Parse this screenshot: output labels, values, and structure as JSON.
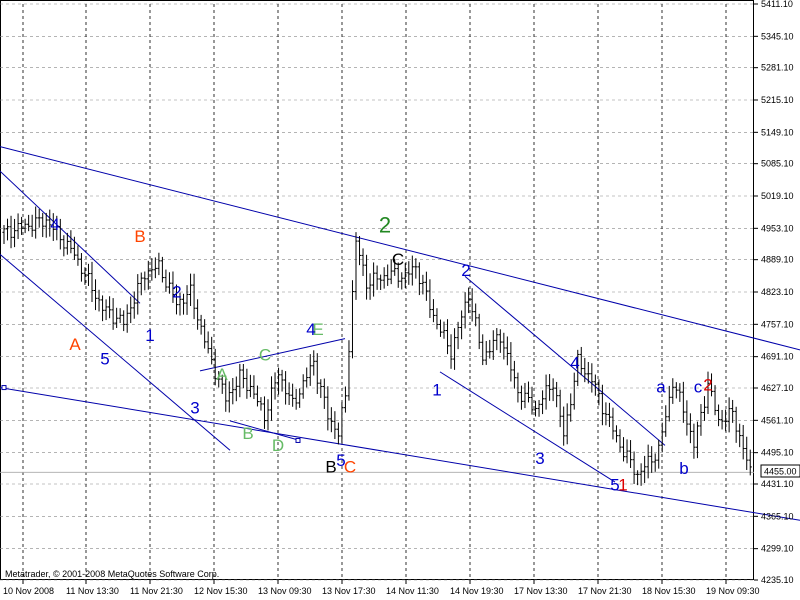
{
  "chart_data": {
    "type": "bar",
    "style": "OHLC price bars",
    "ylim": [
      4235.1,
      5411.1
    ],
    "y_ticks": [
      "5411.10",
      "5345.10",
      "5281.10",
      "5215.10",
      "5149.10",
      "5085.10",
      "5019.10",
      "4953.10",
      "4889.10",
      "4823.10",
      "4757.10",
      "4691.10",
      "4627.10",
      "4561.10",
      "4495.10",
      "4431.10",
      "4365.10",
      "4299.10",
      "4235.10"
    ],
    "x_ticks": [
      "10 Nov 2008",
      "11 Nov 13:30",
      "11 Nov 21:30",
      "12 Nov 15:30",
      "13 Nov 09:30",
      "13 Nov 17:30",
      "14 Nov 11:30",
      "14 Nov 19:30",
      "17 Nov 13:30",
      "17 Nov 21:30",
      "18 Nov 15:30",
      "19 Nov 09:30"
    ],
    "grid": true,
    "current_price": "4455.00",
    "colors": {
      "bars": "#000000",
      "channels": "#0000aa",
      "grid": "#888888",
      "blue_labels": "#0000cc",
      "orange_labels": "#ff4400",
      "green_labels": "#228822",
      "light_green_labels": "#66bb66",
      "red_labels": "#dd0000",
      "black_labels": "#000000"
    },
    "pivots": [
      {
        "i": 0,
        "p": 4945
      },
      {
        "i": 12,
        "p": 4970
      },
      {
        "i": 20,
        "p": 4900
      },
      {
        "i": 28,
        "p": 4790
      },
      {
        "i": 34,
        "p": 4760
      },
      {
        "i": 40,
        "p": 4862
      },
      {
        "i": 44,
        "p": 4875
      },
      {
        "i": 49,
        "p": 4800
      },
      {
        "i": 53,
        "p": 4822
      },
      {
        "i": 58,
        "p": 4700
      },
      {
        "i": 63,
        "p": 4605
      },
      {
        "i": 67,
        "p": 4650
      },
      {
        "i": 70,
        "p": 4628
      },
      {
        "i": 74,
        "p": 4570
      },
      {
        "i": 78,
        "p": 4658
      },
      {
        "i": 82,
        "p": 4592
      },
      {
        "i": 88,
        "p": 4680
      },
      {
        "i": 92,
        "p": 4570
      },
      {
        "i": 95,
        "p": 4535
      },
      {
        "i": 97,
        "p": 4610
      },
      {
        "i": 100,
        "p": 4925
      },
      {
        "i": 103,
        "p": 4842
      },
      {
        "i": 110,
        "p": 4860
      },
      {
        "i": 114,
        "p": 4855
      },
      {
        "i": 117,
        "p": 4875
      },
      {
        "i": 122,
        "p": 4775
      },
      {
        "i": 127,
        "p": 4700
      },
      {
        "i": 132,
        "p": 4820
      },
      {
        "i": 136,
        "p": 4690
      },
      {
        "i": 141,
        "p": 4735
      },
      {
        "i": 146,
        "p": 4620
      },
      {
        "i": 151,
        "p": 4585
      },
      {
        "i": 156,
        "p": 4640
      },
      {
        "i": 159,
        "p": 4530
      },
      {
        "i": 163,
        "p": 4680
      },
      {
        "i": 167,
        "p": 4645
      },
      {
        "i": 170,
        "p": 4590
      },
      {
        "i": 175,
        "p": 4510
      },
      {
        "i": 180,
        "p": 4450
      },
      {
        "i": 186,
        "p": 4500
      },
      {
        "i": 190,
        "p": 4640
      },
      {
        "i": 193,
        "p": 4585
      },
      {
        "i": 196,
        "p": 4510
      },
      {
        "i": 200,
        "p": 4635
      },
      {
        "i": 203,
        "p": 4560
      },
      {
        "i": 207,
        "p": 4575
      },
      {
        "i": 209,
        "p": 4528
      },
      {
        "i": 212,
        "p": 4455
      }
    ],
    "trendlines": [
      {
        "x1": 0,
        "y1": 5120,
        "x2": 800,
        "y2": 4705
      },
      {
        "x1": 0,
        "y1": 5070,
        "x2": 140,
        "y2": 4800
      },
      {
        "x1": 0,
        "y1": 4900,
        "x2": 230,
        "y2": 4500
      },
      {
        "x1": 0,
        "y1": 4628,
        "x2": 800,
        "y2": 4357
      },
      {
        "x1": 200,
        "y1": 4662,
        "x2": 345,
        "y2": 4728
      },
      {
        "x1": 230,
        "y1": 4560,
        "x2": 300,
        "y2": 4520
      },
      {
        "x1": 465,
        "y1": 4855,
        "x2": 665,
        "y2": 4510
      },
      {
        "x1": 440,
        "y1": 4660,
        "x2": 615,
        "y2": 4435
      }
    ],
    "annotations": [
      {
        "text": "4",
        "x": 55,
        "y": 4950,
        "color": "#0000cc"
      },
      {
        "text": "B",
        "x": 140,
        "y": 4925,
        "color": "#ff4400"
      },
      {
        "text": "2",
        "x": 177,
        "y": 4812,
        "color": "#0000cc"
      },
      {
        "text": "1",
        "x": 150,
        "y": 4723,
        "color": "#0000cc"
      },
      {
        "text": "A",
        "x": 75,
        "y": 4705,
        "color": "#ff4400"
      },
      {
        "text": "5",
        "x": 105,
        "y": 4675,
        "color": "#0000cc"
      },
      {
        "text": "3",
        "x": 195,
        "y": 4575,
        "color": "#0000cc"
      },
      {
        "text": "B",
        "x": 248,
        "y": 4523,
        "color": "#66bb66"
      },
      {
        "text": "D",
        "x": 278,
        "y": 4498,
        "color": "#66bb66"
      },
      {
        "text": "A",
        "x": 222,
        "y": 4643,
        "color": "#66bb66"
      },
      {
        "text": "C",
        "x": 265,
        "y": 4683,
        "color": "#66bb66"
      },
      {
        "text": "E",
        "x": 318,
        "y": 4735,
        "color": "#66bb66"
      },
      {
        "text": "4",
        "x": 311,
        "y": 4735,
        "color": "#0000cc"
      },
      {
        "text": "5",
        "x": 341,
        "y": 4468,
        "color": "#0000cc"
      },
      {
        "text": "B",
        "x": 331,
        "y": 4455,
        "color": "#000000"
      },
      {
        "text": "C",
        "x": 350,
        "y": 4455,
        "color": "#ff4400"
      },
      {
        "text": "2",
        "x": 385,
        "y": 4945,
        "color": "#228822"
      },
      {
        "text": "C",
        "x": 398,
        "y": 4878,
        "color": "#000000"
      },
      {
        "text": "2",
        "x": 466,
        "y": 4856,
        "color": "#0000cc"
      },
      {
        "text": "1",
        "x": 437,
        "y": 4612,
        "color": "#0000cc"
      },
      {
        "text": "4",
        "x": 575,
        "y": 4667,
        "color": "#0000cc"
      },
      {
        "text": "3",
        "x": 540,
        "y": 4472,
        "color": "#0000cc"
      },
      {
        "text": "5",
        "x": 615,
        "y": 4418,
        "color": "#0000cc"
      },
      {
        "text": "1",
        "x": 623,
        "y": 4418,
        "color": "#dd0000"
      },
      {
        "text": "a",
        "x": 661,
        "y": 4618,
        "color": "#0000cc"
      },
      {
        "text": "c",
        "x": 698,
        "y": 4618,
        "color": "#0000cc"
      },
      {
        "text": "2",
        "x": 708,
        "y": 4622,
        "color": "#dd0000"
      },
      {
        "text": "b",
        "x": 684,
        "y": 4452,
        "color": "#0000cc"
      }
    ]
  },
  "footer": {
    "copyright": "Metatrader, © 2001-2008 MetaQuotes Software Corp."
  }
}
